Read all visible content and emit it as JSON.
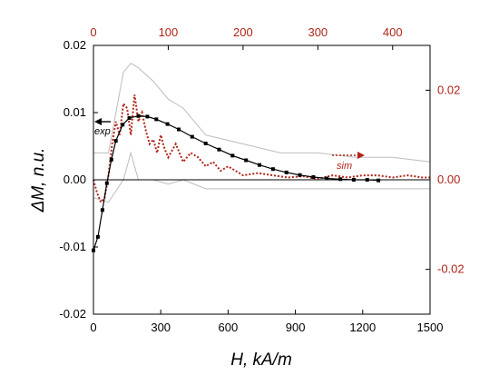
{
  "chart_data": {
    "type": "line",
    "title": "",
    "xlabel": "H, kA/m",
    "ylabel": "ΔM, n.u.",
    "xlim": [
      0,
      1500
    ],
    "ylim": [
      -0.02,
      0.02
    ],
    "x_ticks": [
      "0",
      "300",
      "600",
      "900",
      "1200",
      "1500"
    ],
    "y_ticks": [
      "0.02",
      "0.01",
      "0.00",
      "-0.01",
      "-0.02"
    ],
    "top_axis": {
      "range": [
        0,
        450
      ],
      "ticks": [
        "0",
        "100",
        "200",
        "300",
        "400"
      ]
    },
    "right_axis": {
      "range": [
        -0.03,
        0.03
      ],
      "ticks": [
        "0.02",
        "0.00",
        "-0.02"
      ]
    },
    "grid": false,
    "annotations": {
      "exp": "exp",
      "sim": "sim"
    },
    "colors": {
      "experiment": "#000000",
      "simulation": "#b02418",
      "band": "#bdbdbd"
    },
    "series": [
      {
        "axis": "bottom-left",
        "style": "black line with square markers",
        "x": [
          0,
          20,
          40,
          60,
          80,
          100,
          130,
          160,
          200,
          240,
          280,
          330,
          380,
          440,
          500,
          560,
          620,
          680,
          740,
          800,
          860,
          920,
          980,
          1040,
          1100,
          1160,
          1220,
          1270
        ],
        "y": [
          -0.0105,
          -0.0085,
          -0.0045,
          -0.0005,
          0.003,
          0.0058,
          0.0082,
          0.0092,
          0.0095,
          0.0094,
          0.009,
          0.0083,
          0.0075,
          0.0064,
          0.0054,
          0.0045,
          0.0036,
          0.0029,
          0.0022,
          0.0016,
          0.0011,
          0.0007,
          0.0004,
          0.0002,
          0.0001,
          0.0,
          0.0,
          -0.0001
        ]
      },
      {
        "axis": "top-right",
        "style": "red dotted line",
        "x": [
          0,
          5,
          10,
          15,
          20,
          25,
          30,
          35,
          40,
          45,
          50,
          55,
          60,
          65,
          70,
          75,
          80,
          85,
          90,
          95,
          100,
          110,
          120,
          130,
          140,
          150,
          160,
          170,
          180,
          190,
          200,
          220,
          240,
          260,
          280,
          300,
          320,
          340,
          360,
          380,
          400,
          420,
          440,
          450
        ],
        "y": [
          0.0,
          -0.003,
          -0.005,
          -0.004,
          0.001,
          0.008,
          0.013,
          0.01,
          0.017,
          0.016,
          0.01,
          0.019,
          0.013,
          0.015,
          0.011,
          0.008,
          0.009,
          0.006,
          0.01,
          0.007,
          0.005,
          0.008,
          0.004,
          0.006,
          0.005,
          0.003,
          0.004,
          0.002,
          0.003,
          0.002,
          0.001,
          0.0015,
          0.001,
          0.0005,
          0.0008,
          0.0002,
          0.001,
          0.0005,
          0.001,
          0.001,
          0.0005,
          0.001,
          0.0005,
          0.0005
        ]
      }
    ],
    "band": {
      "axis": "top-right",
      "x": [
        0,
        20,
        40,
        50,
        60,
        80,
        100,
        120,
        150,
        200,
        250,
        300,
        350,
        400,
        450
      ],
      "upper": [
        0.006,
        0.006,
        0.024,
        0.026,
        0.025,
        0.022,
        0.018,
        0.016,
        0.01,
        0.008,
        0.006,
        0.006,
        0.005,
        0.005,
        0.004
      ],
      "lower": [
        -0.004,
        -0.005,
        0.0,
        0.006,
        0.0,
        0.0,
        -0.001,
        0.0,
        -0.002,
        -0.002,
        -0.002,
        -0.002,
        -0.002,
        -0.002,
        -0.002
      ]
    }
  }
}
